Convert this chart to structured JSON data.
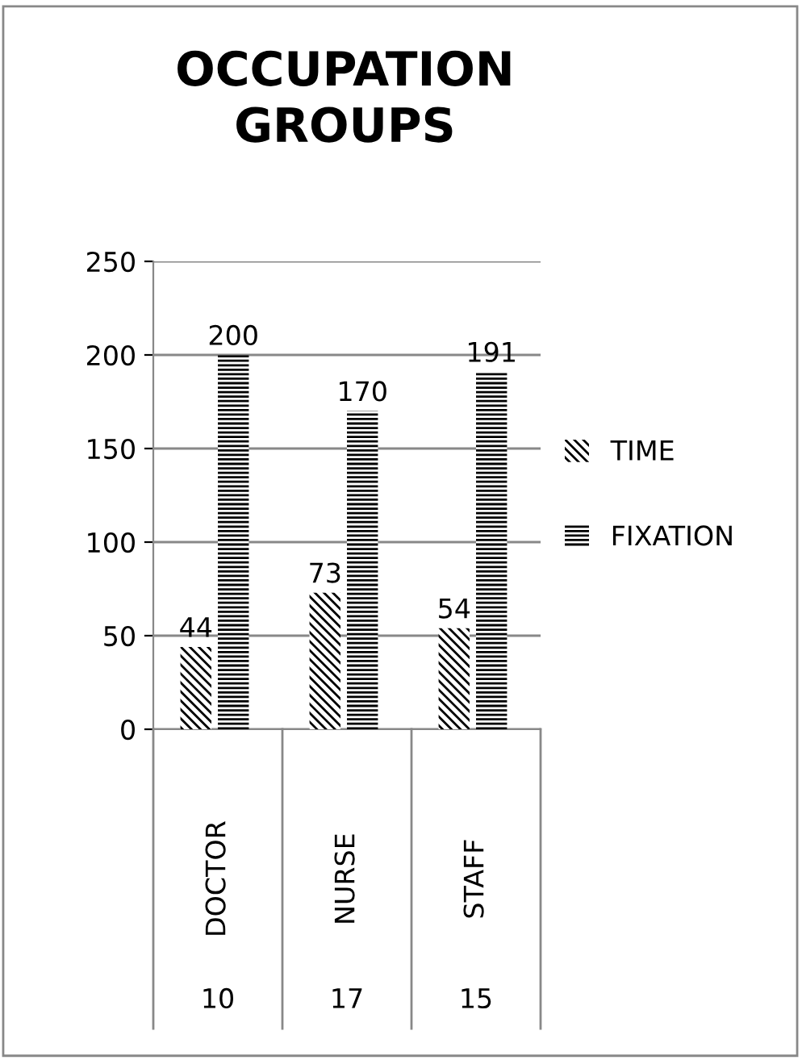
{
  "chart_data": {
    "type": "bar",
    "title": "OCCUPATION\nGROUPS",
    "categories": [
      "DOCTOR",
      "NURSE",
      "STAFF"
    ],
    "series": [
      {
        "name": "TIME",
        "color": "#000000",
        "values": [
          44,
          73,
          54
        ]
      },
      {
        "name": "FIXATION",
        "color": "#000000",
        "values": [
          200,
          170,
          191
        ]
      }
    ],
    "annotations": [
      "10",
      "17",
      "15"
    ],
    "ylim": [
      0,
      250
    ],
    "yticks": [
      0,
      50,
      100,
      150,
      200,
      250
    ],
    "grid": "y",
    "legend": "right",
    "data_labels": true
  }
}
